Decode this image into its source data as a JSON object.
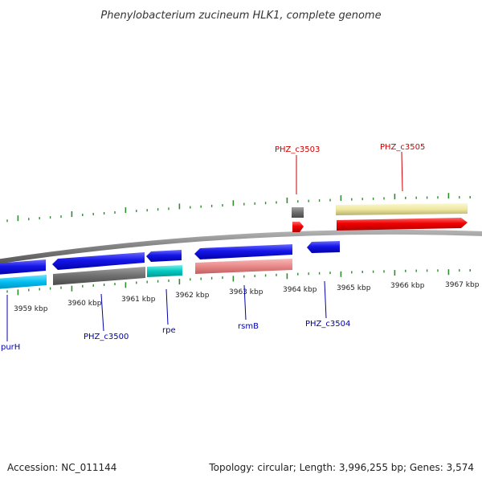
{
  "title": "Phenylobacterium zucineum HLK1, complete genome",
  "footer": {
    "accession": "Accession: NC_011144",
    "topology": "Topology: circular; Length: 3,996,255 bp; Genes: 3,574"
  },
  "scale_labels": [
    "3959 kbp",
    "3960 kbp",
    "3961 kbp",
    "3962 kbp",
    "3963 kbp",
    "3964 kbp",
    "3965 kbp",
    "3966 kbp",
    "3967 kbp"
  ],
  "gene_labels": {
    "purH": "purH",
    "phz_c3500": "PHZ_c3500",
    "rpe": "rpe",
    "rsmB": "rsmB",
    "phz_c3504": "PHZ_c3504",
    "phz_c3503": "PHZ_c3503",
    "phz_c3505": "PHZ_c3505"
  },
  "colors": {
    "backbone": "#8a8a8a",
    "tick": "#2e8b2e",
    "forward_label": "#cc0000",
    "reverse_label": "#0000aa",
    "cds_blue": "#1010e0",
    "cds_red": "#ee0000",
    "light_blue": "#00bff0",
    "gray": "#707070",
    "teal": "#00c8c0",
    "salmon": "#e88888",
    "khaki": "#eee8a0"
  }
}
